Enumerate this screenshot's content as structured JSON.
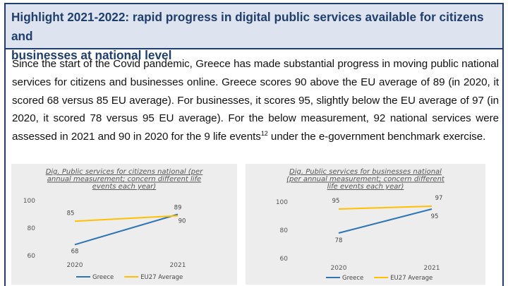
{
  "header": {
    "line1": "Highlight 2021-2022: rapid progress in digital public services available for citizens and",
    "line2": "businesses at national level"
  },
  "body": {
    "text": "Since the start of the Covid pandemic, Greece has made substantial progress in moving public national services for citizens and businesses online. Greece scores 90 above the EU average of 89 (in 2020, it scored 68 versus 85 EU average). For businesses, it scores 95, slightly below the EU average of 97 (in 2020, it scored 78 versus 95 EU average). For the below measurement, 92 national services were assessed in 2021 and 90 in 2020 for the 9 life events",
    "footnote": "12",
    "text_end": " under the e-government benchmark exercise."
  },
  "colors": {
    "greece": "#2e75b6",
    "eu": "#ffc000",
    "header_bg": "#dde4ef",
    "border": "#1f3e6e"
  },
  "chart_data": [
    {
      "type": "line",
      "title_lines": [
        "Dig. Public services for citizens national (per",
        "annual measurement; concern different life",
        "events each year)"
      ],
      "categories": [
        "2020",
        "2021"
      ],
      "ylim": [
        60,
        100
      ],
      "yticks": [
        "60",
        "80",
        "100"
      ],
      "series": [
        {
          "name": "Greece",
          "values": [
            68,
            90
          ],
          "color": "#2e75b6"
        },
        {
          "name": "EU27 Average",
          "values": [
            85,
            89
          ],
          "color": "#ffc000"
        }
      ],
      "grid": false,
      "legend": "bottom"
    },
    {
      "type": "line",
      "title_lines": [
        "Dig. Public services for businesses national",
        "(per annual measurement; concern different",
        "life events each year)"
      ],
      "categories": [
        "2020",
        "2021"
      ],
      "ylim": [
        60,
        100
      ],
      "yticks": [
        "60",
        "80",
        "100"
      ],
      "series": [
        {
          "name": "Greece",
          "values": [
            78,
            95
          ],
          "color": "#2e75b6"
        },
        {
          "name": "EU27 Average",
          "values": [
            95,
            97
          ],
          "color": "#ffc000"
        }
      ],
      "grid": false,
      "legend": "bottom"
    }
  ]
}
